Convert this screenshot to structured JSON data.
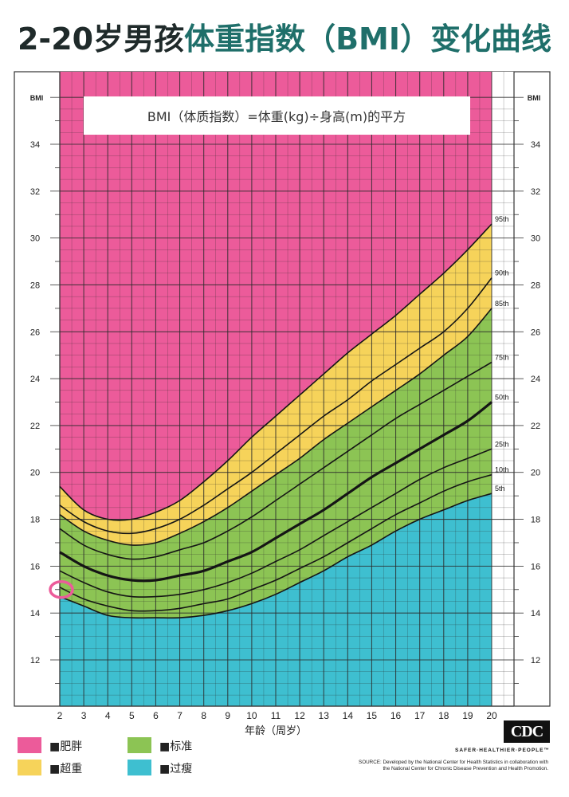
{
  "title": {
    "part1": "2-20岁",
    "part2": "男孩",
    "part3": "体重指数（BMI）变化曲线"
  },
  "formula": "BMI（体质指数）=体重(kg)÷身高(m)的平方",
  "legend": [
    {
      "label": "■肥胖",
      "color": "#ec5b9a"
    },
    {
      "label": "■超重",
      "color": "#f6d35a"
    },
    {
      "label": "■标准",
      "color": "#8cc454"
    },
    {
      "label": "■过瘦",
      "color": "#3ebfd0"
    }
  ],
  "cdc_logo": "CDC",
  "cdc_tagline": "SAFER·HEALTHIER·PEOPLE™",
  "source_line1": "SOURCE: Developed by the National Center for Health Statistics in collaboration with",
  "source_line2": "the National Center for Chronic Disease Prevention and Health Promotion.",
  "chart_data": {
    "type": "line",
    "xlabel": "年龄（周岁）",
    "ylabel": "BMI",
    "xlim": [
      2,
      20
    ],
    "ylim": [
      10,
      36
    ],
    "x": [
      2,
      3,
      4,
      5,
      6,
      7,
      8,
      9,
      10,
      11,
      12,
      13,
      14,
      15,
      16,
      17,
      18,
      19,
      20
    ],
    "x_tick_labels": [
      "2",
      "3",
      "4",
      "5",
      "6",
      "7",
      "8",
      "9",
      "10",
      "11",
      "12",
      "13",
      "14",
      "15",
      "16",
      "17",
      "18",
      "19",
      "20"
    ],
    "y_tick_labels": [
      "12",
      "14",
      "16",
      "18",
      "20",
      "22",
      "24",
      "26",
      "28",
      "30",
      "32",
      "34"
    ],
    "y_ticks": [
      12,
      14,
      16,
      18,
      20,
      22,
      24,
      26,
      28,
      30,
      32,
      34
    ],
    "series": [
      {
        "name": "5th",
        "values": [
          14.7,
          14.3,
          13.9,
          13.8,
          13.8,
          13.8,
          13.9,
          14.1,
          14.4,
          14.8,
          15.3,
          15.8,
          16.4,
          16.9,
          17.5,
          18.0,
          18.4,
          18.8,
          19.1
        ]
      },
      {
        "name": "10th",
        "values": [
          15.1,
          14.6,
          14.3,
          14.1,
          14.1,
          14.2,
          14.4,
          14.6,
          15.0,
          15.4,
          15.9,
          16.4,
          17.0,
          17.6,
          18.2,
          18.7,
          19.2,
          19.6,
          19.9
        ]
      },
      {
        "name": "25th",
        "values": [
          15.8,
          15.3,
          14.9,
          14.7,
          14.7,
          14.8,
          15.0,
          15.3,
          15.7,
          16.2,
          16.7,
          17.3,
          17.9,
          18.5,
          19.1,
          19.7,
          20.2,
          20.6,
          21.0
        ]
      },
      {
        "name": "50th",
        "values": [
          16.6,
          16.0,
          15.6,
          15.4,
          15.4,
          15.6,
          15.8,
          16.2,
          16.6,
          17.2,
          17.8,
          18.4,
          19.1,
          19.8,
          20.4,
          21.0,
          21.6,
          22.2,
          23.0
        ]
      },
      {
        "name": "75th",
        "values": [
          17.6,
          16.9,
          16.5,
          16.3,
          16.4,
          16.7,
          17.0,
          17.5,
          18.1,
          18.8,
          19.5,
          20.2,
          20.9,
          21.6,
          22.3,
          22.9,
          23.5,
          24.1,
          24.7
        ]
      },
      {
        "name": "85th",
        "values": [
          18.2,
          17.5,
          17.1,
          16.9,
          17.0,
          17.4,
          17.9,
          18.5,
          19.2,
          19.9,
          20.6,
          21.4,
          22.1,
          22.8,
          23.5,
          24.2,
          25.0,
          25.8,
          27.0
        ]
      },
      {
        "name": "90th",
        "values": [
          18.6,
          17.9,
          17.5,
          17.4,
          17.6,
          18.0,
          18.6,
          19.3,
          20.0,
          20.8,
          21.6,
          22.4,
          23.1,
          23.9,
          24.6,
          25.3,
          26.0,
          27.0,
          28.3
        ]
      },
      {
        "name": "95th",
        "values": [
          19.4,
          18.4,
          18.0,
          18.0,
          18.3,
          18.8,
          19.6,
          20.5,
          21.5,
          22.4,
          23.3,
          24.2,
          25.1,
          25.9,
          26.7,
          27.6,
          28.5,
          29.5,
          30.6
        ]
      }
    ],
    "zones": [
      {
        "label": "肥胖",
        "from": "95th",
        "to": "top",
        "color": "#ec5b9a"
      },
      {
        "label": "超重",
        "from": "85th",
        "to": "95th",
        "color": "#f6d35a"
      },
      {
        "label": "标准",
        "from": "5th",
        "to": "85th",
        "color": "#8cc454"
      },
      {
        "label": "过瘦",
        "from": "bottom",
        "to": "5th",
        "color": "#3ebfd0"
      }
    ],
    "marker": {
      "x": 2,
      "y": 15.0,
      "color": "#ec5b9a"
    },
    "grid": true
  }
}
